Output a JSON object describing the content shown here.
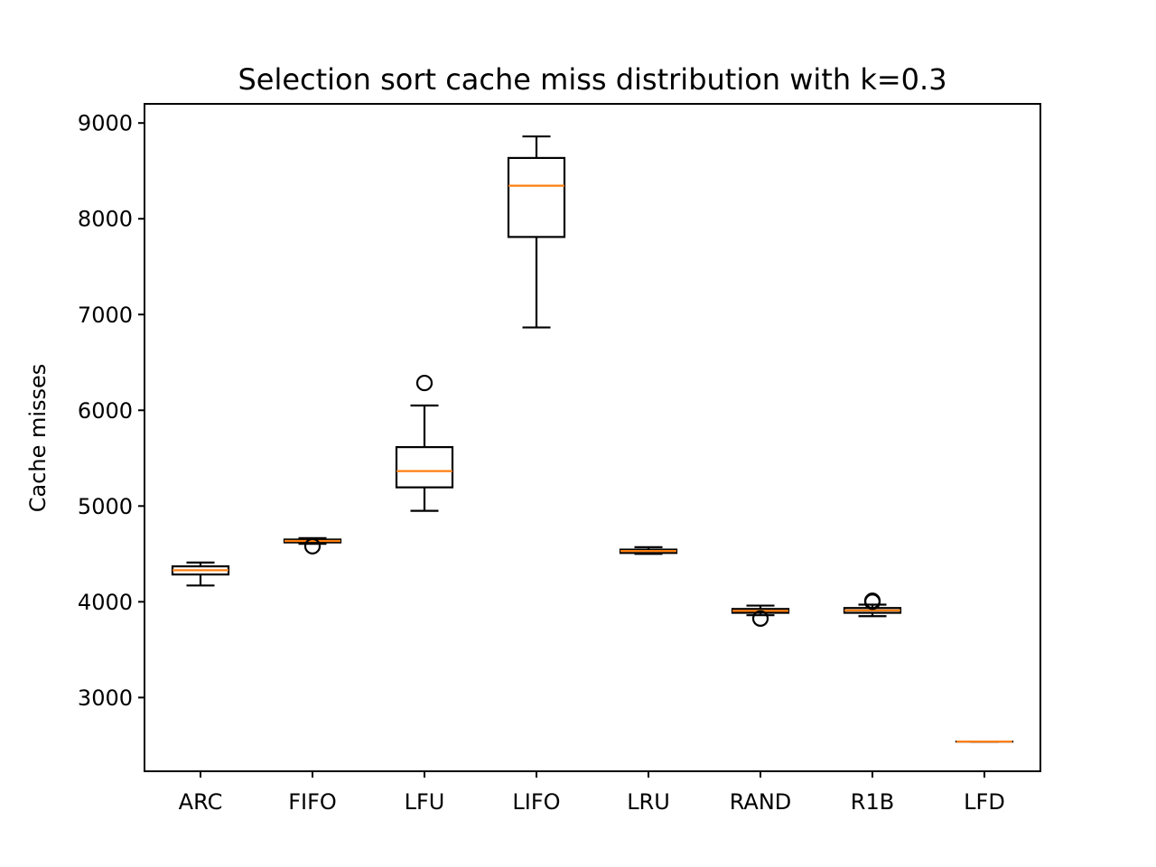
{
  "chart_data": {
    "type": "box",
    "title": "Selection sort cache miss distribution with k=0.3",
    "xlabel": "",
    "ylabel": "Cache misses",
    "ylim": [
      2230,
      9200
    ],
    "yticks": [
      3000,
      4000,
      5000,
      6000,
      7000,
      8000,
      9000
    ],
    "ytick_labels": [
      "3000",
      "4000",
      "5000",
      "6000",
      "7000",
      "8000",
      "9000"
    ],
    "grid": false,
    "median_color": "#ff7f0e",
    "box_color": "#000000",
    "categories": [
      "ARC",
      "FIFO",
      "LFU",
      "LIFO",
      "LRU",
      "RAND",
      "R1B",
      "LFD"
    ],
    "boxes": [
      {
        "label": "ARC",
        "whisker_low": 4170,
        "q1": 4285,
        "median": 4330,
        "q3": 4370,
        "whisker_high": 4410,
        "outliers": []
      },
      {
        "label": "FIFO",
        "whisker_low": 4605,
        "q1": 4620,
        "median": 4635,
        "q3": 4650,
        "whisker_high": 4665,
        "outliers": [
          4580
        ]
      },
      {
        "label": "LFU",
        "whisker_low": 4950,
        "q1": 5195,
        "median": 5365,
        "q3": 5615,
        "whisker_high": 6050,
        "outliers": [
          6285
        ]
      },
      {
        "label": "LIFO",
        "whisker_low": 6865,
        "q1": 7810,
        "median": 8345,
        "q3": 8635,
        "whisker_high": 8860,
        "outliers": []
      },
      {
        "label": "LRU",
        "whisker_low": 4500,
        "q1": 4510,
        "median": 4530,
        "q3": 4545,
        "whisker_high": 4570,
        "outliers": []
      },
      {
        "label": "RAND",
        "whisker_low": 3860,
        "q1": 3885,
        "median": 3905,
        "q3": 3925,
        "whisker_high": 3960,
        "outliers": [
          3825
        ]
      },
      {
        "label": "R1B",
        "whisker_low": 3850,
        "q1": 3885,
        "median": 3910,
        "q3": 3935,
        "whisker_high": 3970,
        "outliers": [
          4000,
          4010
        ]
      },
      {
        "label": "LFD",
        "whisker_low": 2540,
        "q1": 2540,
        "median": 2540,
        "q3": 2540,
        "whisker_high": 2540,
        "outliers": []
      }
    ]
  }
}
